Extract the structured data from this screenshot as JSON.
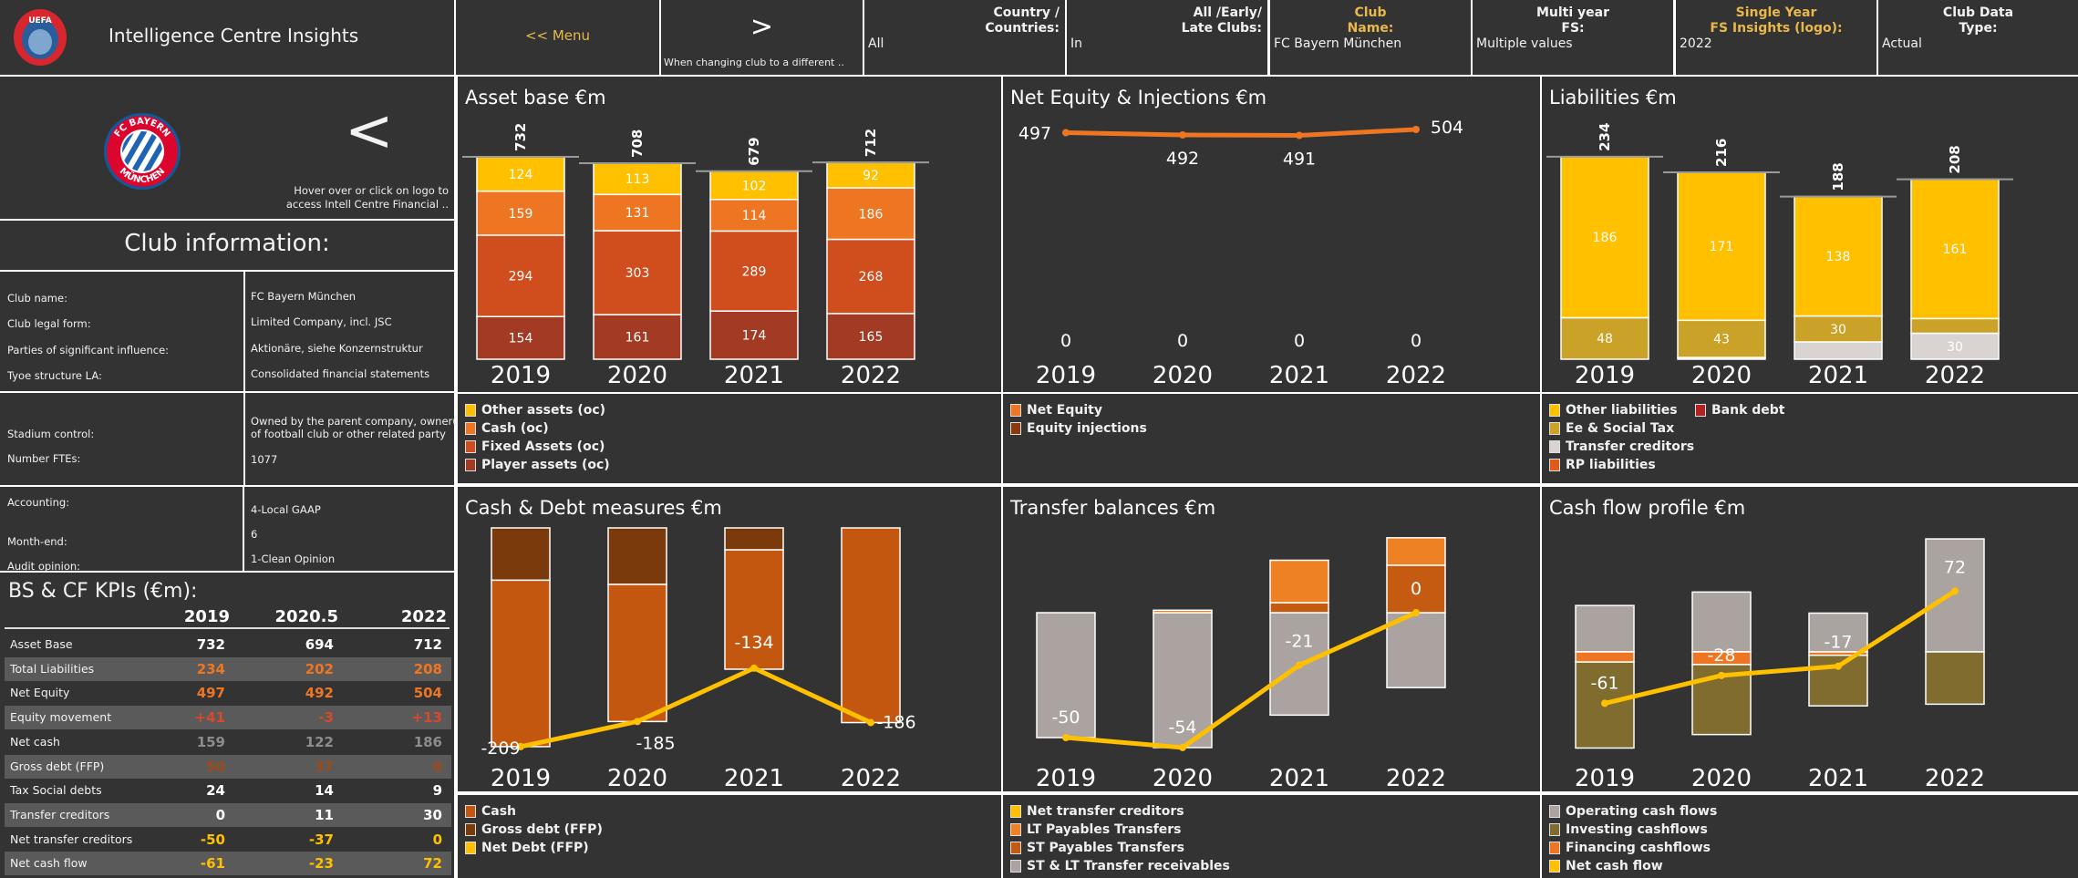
{
  "header": {
    "title": "Intelligence Centre Insights",
    "menu_label": "<< Menu",
    "next_label": ">",
    "next_hint": "When changing club to a different ..",
    "filters": [
      {
        "label": "Country /\nCountries:",
        "value": "All",
        "highlight": false
      },
      {
        "label": "All /Early/\nLate Clubs:",
        "value": "In",
        "highlight": false
      },
      {
        "label": "Club\nName:",
        "value": "FC Bayern München",
        "highlight": true
      },
      {
        "label": "Multi year\nFS:",
        "value": "Multiple values",
        "highlight": false
      },
      {
        "label": "Single Year\nFS Insights (logo):",
        "value": "2022",
        "highlight": true
      },
      {
        "label": "Club Data\nType:",
        "value": "Actual",
        "highlight": false
      }
    ]
  },
  "club_panel": {
    "back_label": "<",
    "hint": "Hover over or click on logo to\naccess Intell Centre Financial ..",
    "logo_text": "FC BAYERN MÜNCHEN",
    "info_title": "Club information:",
    "info_groups": [
      [
        {
          "label": "Club name:",
          "value": "FC Bayern München"
        },
        {
          "label": "Club legal form:",
          "value": "Limited Company, incl. JSC"
        },
        {
          "label": "Parties of significant influence:",
          "value": "Aktionäre, siehe Konzernstruktur"
        },
        {
          "label": "Tyoe structure LA:",
          "value": "Consolidated financial statements"
        }
      ],
      [
        {
          "label": "Stadium control:",
          "value": "Owned by the parent company, owner(s)\nof football club or other related party"
        },
        {
          "label": "Number FTEs:",
          "value": "1077"
        }
      ],
      [
        {
          "label": "Accounting:",
          "value": "4-Local GAAP"
        },
        {
          "label": "Month-end:",
          "value": "6"
        },
        {
          "label": "Audit opinion:",
          "value": "1-Clean Opinion"
        }
      ]
    ]
  },
  "kpis": {
    "title": "BS & CF KPIs (€m):",
    "columns": [
      "2019",
      "2020.5",
      "2022"
    ],
    "rows": [
      {
        "label": "Asset Base",
        "values": [
          "732",
          "694",
          "712"
        ],
        "color": "#ffffff"
      },
      {
        "label": "Total Liabilities",
        "values": [
          "234",
          "202",
          "208"
        ],
        "color": "#ee7623"
      },
      {
        "label": "Net Equity",
        "values": [
          "497",
          "492",
          "504"
        ],
        "color": "#ee7623"
      },
      {
        "label": "Equity movement",
        "values": [
          "+41",
          "-3",
          "+13"
        ],
        "color": "#d9482b"
      },
      {
        "label": "Net cash",
        "values": [
          "159",
          "122",
          "186"
        ],
        "color": "#8c8c8c"
      },
      {
        "label": "Gross debt (FFP)",
        "values": [
          "50",
          "37",
          "0"
        ],
        "color": "#9c4a1a"
      },
      {
        "label": "Tax Social debts",
        "values": [
          "24",
          "14",
          "9"
        ],
        "color": "#ffffff"
      },
      {
        "label": "Transfer creditors",
        "values": [
          "0",
          "11",
          "30"
        ],
        "color": "#ffffff"
      },
      {
        "label": "Net transfer creditors",
        "values": [
          "-50",
          "-37",
          "0"
        ],
        "color": "#ffc000"
      },
      {
        "label": "Net cash flow",
        "values": [
          "-61",
          "-23",
          "72"
        ],
        "color": "#ffc000"
      }
    ]
  },
  "chart_data": [
    {
      "type": "bar",
      "stacked": true,
      "title": "Asset base €m",
      "categories": [
        "2019",
        "2020",
        "2021",
        "2022"
      ],
      "totals": [
        732,
        708,
        679,
        712
      ],
      "series": [
        {
          "name": "Other assets (oc)",
          "values": [
            124,
            113,
            102,
            92
          ],
          "color": "#ffc000"
        },
        {
          "name": "Cash (oc)",
          "values": [
            159,
            131,
            114,
            186
          ],
          "color": "#ee7623"
        },
        {
          "name": "Fixed Assets (oc)",
          "values": [
            294,
            303,
            289,
            268
          ],
          "color": "#d04e1e"
        },
        {
          "name": "Player assets (oc)",
          "values": [
            154,
            161,
            174,
            165
          ],
          "color": "#a33a24"
        }
      ]
    },
    {
      "type": "line",
      "title": "Net Equity & Injections €m",
      "categories": [
        "2019",
        "2020",
        "2021",
        "2022"
      ],
      "series": [
        {
          "name": "Net Equity",
          "values": [
            497,
            492,
            491,
            504
          ],
          "color": "#ee7623"
        },
        {
          "name": "Equity injections",
          "values": [
            0,
            0,
            0,
            0
          ],
          "color": "#8b3a0f"
        }
      ]
    },
    {
      "type": "bar",
      "stacked": true,
      "title": "Liabilities €m",
      "categories": [
        "2019",
        "2020",
        "2021",
        "2022"
      ],
      "totals": [
        234,
        216,
        188,
        208
      ],
      "series": [
        {
          "name": "Other liabilities",
          "values": [
            186,
            171,
            138,
            161
          ],
          "color": "#ffc000"
        },
        {
          "name": "Ee & Social Tax",
          "values": [
            48,
            43,
            30,
            17
          ],
          "color": "#c9a227"
        },
        {
          "name": "Transfer creditors",
          "values": [
            0,
            2,
            20,
            30
          ],
          "color": "#d9d4d1"
        },
        {
          "name": "RP liabilities",
          "values": [
            0,
            0,
            0,
            0
          ],
          "color": "#e05a1c"
        },
        {
          "name": "Bank debt",
          "values": [
            0,
            0,
            0,
            0
          ],
          "color": "#b22222"
        }
      ]
    },
    {
      "type": "bar+line",
      "title": "Cash & Debt measures €m",
      "categories": [
        "2019",
        "2020",
        "2021",
        "2022"
      ],
      "series": [
        {
          "name": "Cash",
          "values": [
            159,
            131,
            114,
            186
          ],
          "color": "#c4570f"
        },
        {
          "name": "Gross debt (FFP)",
          "values": [
            50,
            54,
            21,
            0
          ],
          "color": "#7a3a0c"
        },
        {
          "name": "Net Debt (FFP)",
          "values": [
            -209,
            -185,
            -134,
            -186
          ],
          "color": "#ffc000"
        }
      ]
    },
    {
      "type": "bar+line",
      "title": "Transfer balances €m",
      "categories": [
        "2019",
        "2020",
        "2021",
        "2022"
      ],
      "series": [
        {
          "name": "Net transfer creditors",
          "values": [
            -50,
            -54,
            -21,
            0
          ],
          "color": "#ffc000"
        },
        {
          "name": "LT Payables Transfers",
          "values": [
            0,
            1,
            17,
            11
          ],
          "color": "#ee8123"
        },
        {
          "name": "ST Payables Transfers",
          "values": [
            0,
            0,
            4,
            19
          ],
          "color": "#c55a11"
        },
        {
          "name": "ST & LT Transfer receivables",
          "values": [
            -50,
            -54,
            -41,
            -30
          ],
          "color": "#aba3a0"
        }
      ]
    },
    {
      "type": "bar+line",
      "title": "Cash flow profile €m",
      "categories": [
        "2019",
        "2020",
        "2021",
        "2022"
      ],
      "series": [
        {
          "name": "Operating cash flows",
          "values": [
            55,
            71,
            46,
            134
          ],
          "color": "#aba3a0"
        },
        {
          "name": "Investing cashflows",
          "values": [
            -102,
            -83,
            -60,
            -62
          ],
          "color": "#7f6c2e"
        },
        {
          "name": "Financing cashflows",
          "values": [
            -12,
            -15,
            -4,
            0
          ],
          "color": "#ee7623"
        },
        {
          "name": "Net cash flow",
          "values": [
            -61,
            -28,
            -17,
            72
          ],
          "color": "#ffc000"
        }
      ]
    }
  ]
}
